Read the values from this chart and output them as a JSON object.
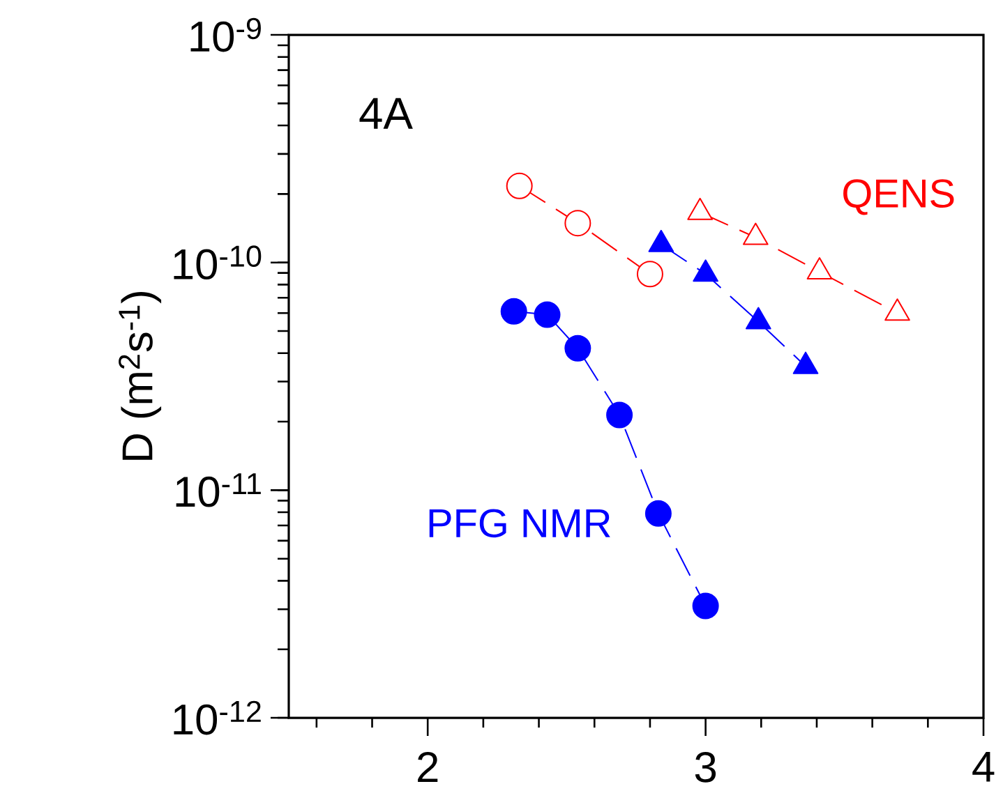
{
  "chart_data": {
    "type": "line",
    "ylabel": "D (m$^{2}$s$^{-1}$)",
    "log": "y",
    "xlim": [
      1.5,
      4
    ],
    "ylim": [
      1e-12,
      1e-09
    ],
    "xticks": [
      {
        "value": 1.6,
        "label": null
      },
      {
        "value": 1.8,
        "label": null
      },
      2,
      {
        "value": 2.2,
        "label": null
      },
      {
        "value": 2.4,
        "label": null
      },
      {
        "value": 2.6,
        "label": null
      },
      {
        "value": 2.8,
        "label": null
      },
      3,
      {
        "value": 3.2,
        "label": null
      },
      {
        "value": 3.4,
        "label": null
      },
      {
        "value": 3.6,
        "label": null
      },
      {
        "value": 3.8,
        "label": null
      },
      4
    ],
    "yticks": [
      {
        "value": 1e-12,
        "label": "10$^{-12}$"
      },
      {
        "value": 1e-11,
        "label": "10$^{-11}$"
      },
      {
        "value": 1e-10,
        "label": "10$^{-10}$"
      },
      {
        "value": 1e-09,
        "label": "10$^{-9}$"
      }
    ],
    "grid": false,
    "legend": false,
    "line_style": "dashed",
    "annotations": [
      "4A"
    ],
    "series": [
      {
        "color": "#ff0000",
        "marker": "circle",
        "x": [
          2.33,
          2.54,
          2.8
        ],
        "values": [
          2.17e-10,
          1.49e-10,
          8.9e-11
        ]
      },
      {
        "name": "QENS",
        "color": "#ff0000",
        "marker": "triangle",
        "x": [
          2.98,
          3.18,
          3.41,
          3.69
        ],
        "values": [
          1.66e-10,
          1.29e-10,
          9.1e-11,
          6e-11
        ]
      },
      {
        "color": "#0000ff",
        "marker": "triangle",
        "x": [
          2.84,
          3.0,
          3.19,
          3.36
        ],
        "values": [
          1.2e-10,
          8.9e-11,
          5.5e-11,
          3.5e-11
        ]
      },
      {
        "name": "PFG NMR",
        "color": "#0000ff",
        "marker": "circle",
        "x": [
          2.31,
          2.43,
          2.54,
          2.69,
          2.83,
          3.0
        ],
        "values": [
          6.1e-11,
          5.9e-11,
          4.2e-11,
          2.14e-11,
          7.9e-12,
          3.1e-12
        ]
      }
    ]
  }
}
